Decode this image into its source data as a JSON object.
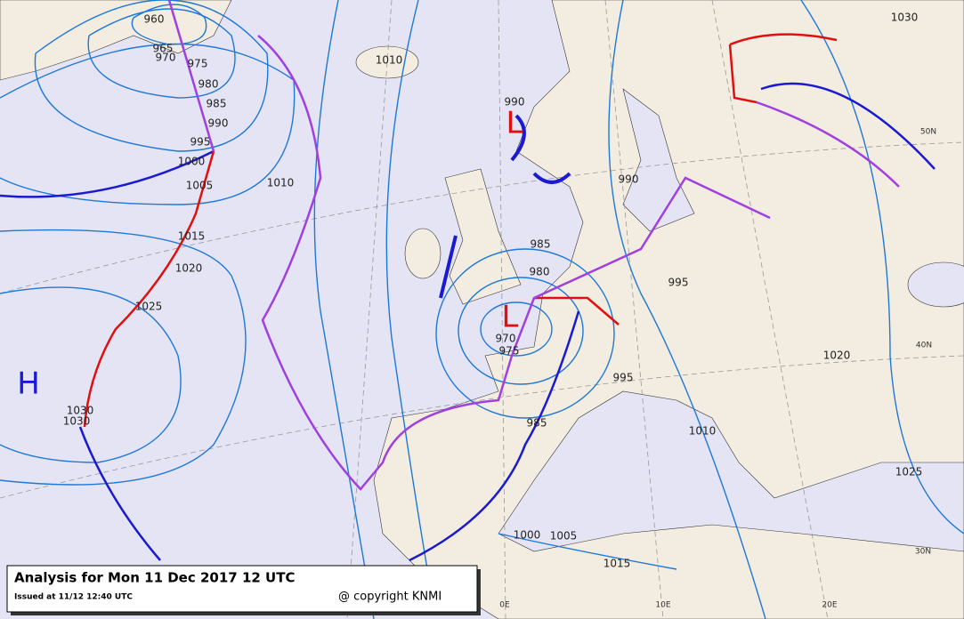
{
  "title_box": {
    "title": "Analysis for Mon 11 Dec 2017 12 UTC",
    "issued": "Issued at 11/12 12:40 UTC",
    "copyright": "@ copyright KNMI"
  },
  "pressure_centers": [
    "H",
    "L",
    "L"
  ],
  "isobar_labels": [
    "960",
    "965",
    "970",
    "975",
    "980",
    "985",
    "990",
    "995",
    "1000",
    "1005",
    "1010",
    "1015",
    "1020",
    "1025",
    "1030",
    "1030",
    "1010",
    "990",
    "990",
    "985",
    "980",
    "975",
    "970",
    "995",
    "995",
    "1010",
    "1020",
    "1025",
    "1030",
    "1005",
    "1000",
    "1015",
    "985"
  ],
  "graticule_labels": [
    "50N",
    "40N",
    "30N",
    "0E",
    "10E",
    "20E"
  ]
}
